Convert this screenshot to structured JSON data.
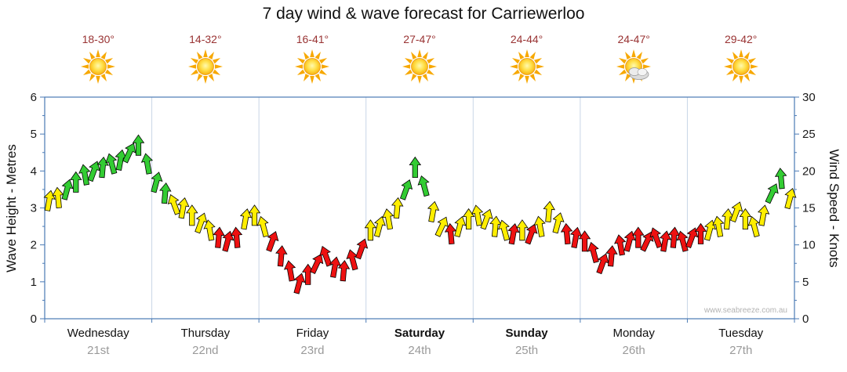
{
  "title": "7 day wind & wave forecast for Carriewerloo",
  "watermark": "www.seabreeze.com.au",
  "axes": {
    "left_title": "Wave Height - Metres",
    "right_title": "Wind Speed - Knots",
    "left_ticks": [
      0,
      1,
      2,
      3,
      4,
      5,
      6
    ],
    "right_ticks": [
      0,
      5,
      10,
      15,
      20,
      25,
      30
    ]
  },
  "days": [
    {
      "name": "Wednesday",
      "date": "21st",
      "temp": "18-30°",
      "icon": "sunny",
      "bold": false
    },
    {
      "name": "Thursday",
      "date": "22nd",
      "temp": "14-32°",
      "icon": "sunny",
      "bold": false
    },
    {
      "name": "Friday",
      "date": "23rd",
      "temp": "16-41°",
      "icon": "sunny",
      "bold": false
    },
    {
      "name": "Saturday",
      "date": "24th",
      "temp": "27-47°",
      "icon": "sunny",
      "bold": true
    },
    {
      "name": "Sunday",
      "date": "25th",
      "temp": "24-44°",
      "icon": "sunny",
      "bold": true
    },
    {
      "name": "Monday",
      "date": "26th",
      "temp": "24-47°",
      "icon": "partly-cloudy",
      "bold": false
    },
    {
      "name": "Tuesday",
      "date": "27th",
      "temp": "29-42°",
      "icon": "sunny",
      "bold": false
    }
  ],
  "chart_data": {
    "type": "wind-barb-series",
    "title": "7 day wind & wave forecast for Carriewerloo",
    "categories": [
      "Wednesday 21st",
      "Thursday 22nd",
      "Friday 23rd",
      "Saturday 24th",
      "Sunday 25th",
      "Monday 26th",
      "Tuesday 27th"
    ],
    "points_per_day": 12,
    "left_axis": {
      "label": "Wave Height - Metres",
      "range": [
        0,
        6
      ]
    },
    "right_axis": {
      "label": "Wind Speed - Knots",
      "range": [
        0,
        30
      ]
    },
    "wind_speed_knots": [
      16,
      16.4,
      17.5,
      18.5,
      19.5,
      20,
      20.5,
      21,
      21.5,
      22.5,
      23.5,
      21,
      18.5,
      17,
      15.5,
      15,
      14,
      13,
      12,
      11,
      10.5,
      11,
      13.5,
      14,
      12.5,
      10.5,
      8.5,
      6.5,
      4.8,
      6,
      7.5,
      8.5,
      7,
      6.5,
      8,
      9.5,
      12,
      12.5,
      13.5,
      15,
      17.5,
      20.5,
      18,
      14.5,
      12.5,
      11.5,
      12.5,
      13.5,
      14,
      13.5,
      12.5,
      12,
      11.5,
      12,
      11.5,
      12.5,
      14.5,
      13,
      11.5,
      11,
      10.5,
      9,
      7.5,
      8.5,
      10,
      10.5,
      11,
      10.5,
      11,
      10.5,
      11,
      10.5,
      11,
      11.5,
      12,
      12.5,
      13.5,
      14.5,
      13.5,
      12.5,
      14,
      17,
      19,
      16.3
    ],
    "wind_dir_deg": [
      10,
      -5,
      15,
      0,
      -10,
      20,
      5,
      -15,
      10,
      25,
      0,
      -10,
      15,
      5,
      -20,
      10,
      0,
      20,
      -10,
      5,
      15,
      -5,
      10,
      0,
      -15,
      20,
      5,
      -10,
      15,
      0,
      25,
      -20,
      10,
      5,
      -15,
      20,
      0,
      15,
      -10,
      5,
      20,
      0,
      -15,
      10,
      25,
      -5,
      15,
      0,
      -10,
      20,
      5,
      -15,
      10,
      0,
      20,
      -10,
      5,
      15,
      -5,
      10,
      0,
      -15,
      20,
      5,
      -10,
      15,
      0,
      25,
      -20,
      10,
      5,
      -15,
      20,
      0,
      15,
      -10,
      5,
      20,
      0,
      -15,
      10,
      25,
      -5,
      15
    ],
    "thresholds_knots": {
      "high_min": 16.5,
      "mid_min": 11.6
    },
    "colors": {
      "high_wind": "#33cc33",
      "mid_wind": "#ffee00",
      "low_wind": "#ee1111",
      "arrow_outline": "#000000",
      "frame": "#4a7ab5",
      "grid": "#c9d6e6",
      "tick_label": "#1a1a1a",
      "temp_label": "#993333"
    },
    "legend_position": "none",
    "grid": "vertical-day-boundaries"
  }
}
